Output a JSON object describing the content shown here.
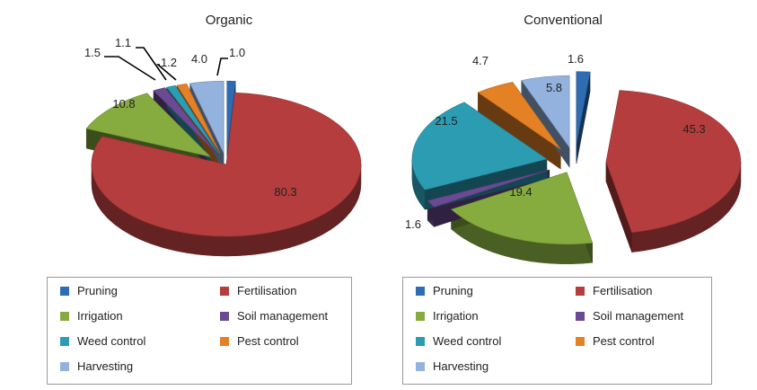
{
  "colors": {
    "Pruning": "#2e6db4",
    "Fertilisation": "#b53d3d",
    "Irrigation": "#86ac3f",
    "Soil management": "#6a4a92",
    "Weed control": "#2c9cb3",
    "Pest control": "#e48125",
    "Harvesting": "#93b2dd"
  },
  "legend": {
    "labels": [
      "Pruning",
      "Fertilisation",
      "Irrigation",
      "Soil management",
      "Weed control",
      "Pest control",
      "Harvesting"
    ]
  },
  "chart_data": [
    {
      "type": "pie",
      "style": "3d-exploded",
      "title": "Organic",
      "legend_position": "bottom",
      "slices": [
        {
          "label": "Pruning",
          "value": 1.0
        },
        {
          "label": "Fertilisation",
          "value": 80.3
        },
        {
          "label": "Irrigation",
          "value": 10.8
        },
        {
          "label": "Soil management",
          "value": 1.5
        },
        {
          "label": "Weed control",
          "value": 1.1
        },
        {
          "label": "Pest control",
          "value": 1.2
        },
        {
          "label": "Harvesting",
          "value": 4.0
        }
      ]
    },
    {
      "type": "pie",
      "style": "3d-exploded",
      "title": "Conventional",
      "legend_position": "bottom",
      "slices": [
        {
          "label": "Pruning",
          "value": 1.6
        },
        {
          "label": "Fertilisation",
          "value": 45.3
        },
        {
          "label": "Irrigation",
          "value": 19.4
        },
        {
          "label": "Soil management",
          "value": 1.6
        },
        {
          "label": "Weed control",
          "value": 21.5
        },
        {
          "label": "Pest control",
          "value": 4.7
        },
        {
          "label": "Harvesting",
          "value": 5.8
        }
      ]
    }
  ]
}
